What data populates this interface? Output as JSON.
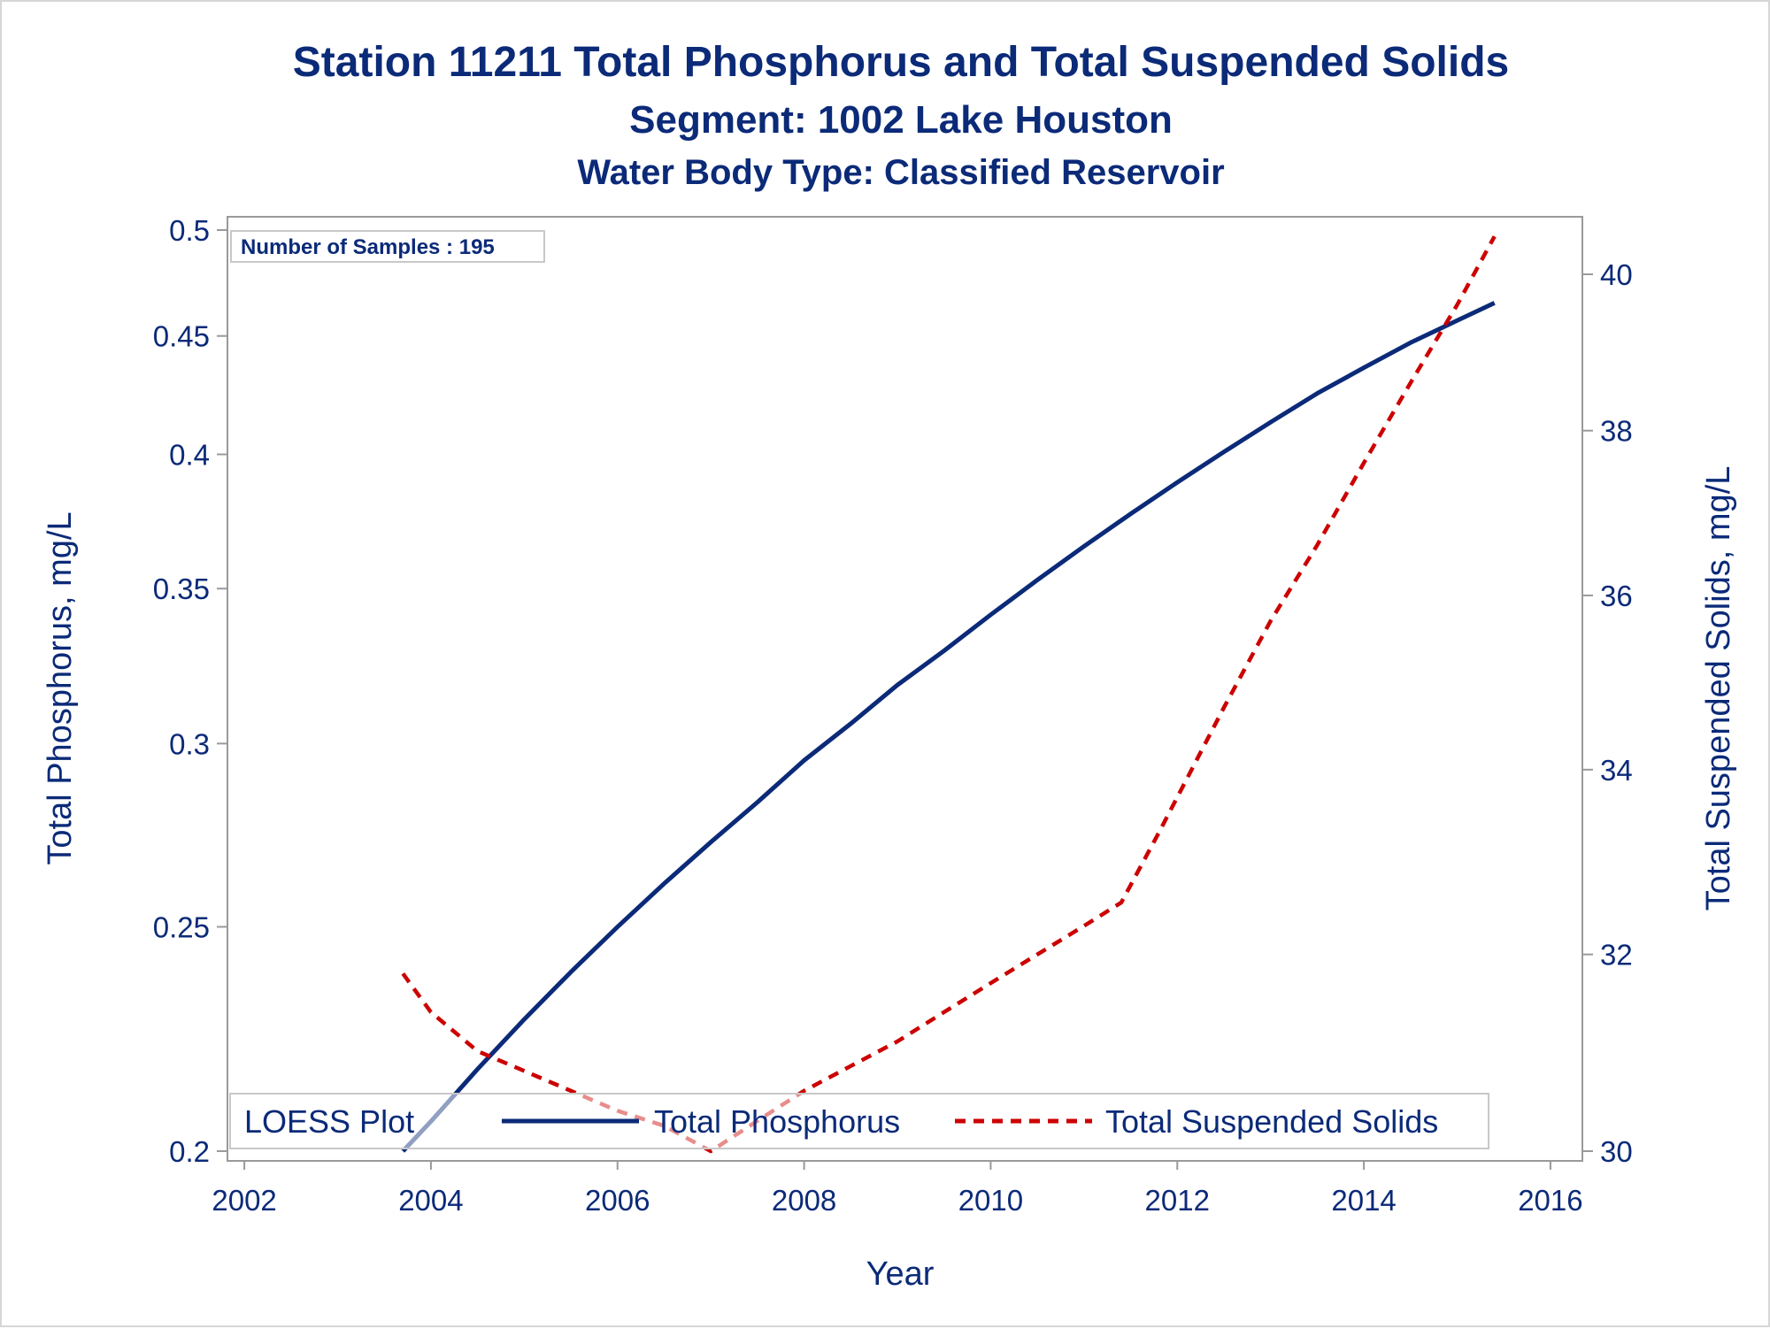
{
  "chart_data": {
    "type": "line",
    "title": "Station 11211  Total Phosphorus and Total Suspended Solids",
    "subtitle1": "Segment: 1002  Lake Houston",
    "subtitle2": "Water Body Type: Classified Reservoir",
    "xlabel": "Year",
    "ylabel_left": "Total Phosphorus, mg/L",
    "ylabel_right": "Total Suspended Solids, mg/L",
    "x_ticks": [
      2002,
      2004,
      2006,
      2008,
      2010,
      2012,
      2014,
      2016
    ],
    "y_left_ticks": [
      0.2,
      0.25,
      0.3,
      0.35,
      0.4,
      0.45,
      0.5
    ],
    "y_left_scale": "log",
    "y_right_ticks": [
      30,
      32,
      34,
      36,
      38,
      40
    ],
    "y_right_scale": "log",
    "xlim": [
      2001.8,
      2016.2
    ],
    "ylim_left": [
      0.2,
      0.5
    ],
    "ylim_right": [
      30,
      40.5
    ],
    "grid": false,
    "inset_text": "Number of Samples : 195",
    "legend": {
      "title": "LOESS Plot",
      "position": "bottom-inside",
      "entries": [
        "Total Phosphorus",
        "Total Suspended Solids"
      ]
    },
    "series": [
      {
        "name": "Total Phosphorus",
        "axis": "left",
        "color": "#0b2a78",
        "dash": "solid",
        "x": [
          2003.7,
          2004.0,
          2004.5,
          2005.0,
          2005.5,
          2006.0,
          2006.5,
          2007.0,
          2007.5,
          2008.0,
          2008.5,
          2009.0,
          2009.5,
          2010.0,
          2010.5,
          2011.0,
          2011.5,
          2012.0,
          2012.5,
          2013.0,
          2013.5,
          2014.0,
          2014.5,
          2015.0,
          2015.4
        ],
        "y": [
          0.2,
          0.206,
          0.217,
          0.228,
          0.239,
          0.25,
          0.261,
          0.272,
          0.283,
          0.295,
          0.306,
          0.318,
          0.329,
          0.341,
          0.353,
          0.365,
          0.377,
          0.389,
          0.401,
          0.413,
          0.425,
          0.436,
          0.447,
          0.457,
          0.465
        ]
      },
      {
        "name": "Total Suspended Solids",
        "axis": "right",
        "color": "#cc0000",
        "dash": "dashed",
        "x": [
          2003.7,
          2004.0,
          2004.5,
          2005.0,
          2005.5,
          2006.0,
          2006.5,
          2007.0,
          2007.5,
          2008.0,
          2008.5,
          2009.0,
          2009.5,
          2010.0,
          2010.5,
          2011.0,
          2011.4,
          2011.8,
          2012.5,
          2013.0,
          2013.5,
          2014.0,
          2014.5,
          2015.0,
          2015.4
        ],
        "y": [
          31.8,
          31.4,
          31.0,
          30.8,
          30.6,
          30.4,
          30.25,
          30.0,
          30.3,
          30.6,
          30.85,
          31.1,
          31.4,
          31.7,
          32.0,
          32.3,
          32.55,
          33.3,
          34.7,
          35.7,
          36.6,
          37.6,
          38.6,
          39.6,
          40.5
        ]
      }
    ]
  }
}
